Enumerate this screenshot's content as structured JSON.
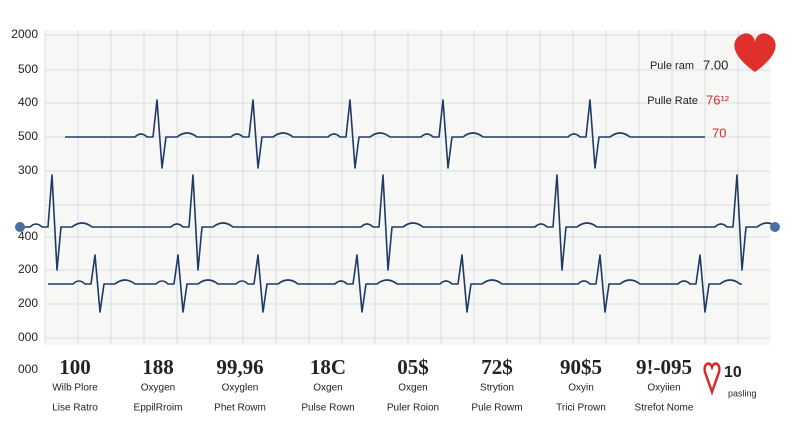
{
  "axis_labels": [
    "2000",
    "500",
    "400",
    "500",
    "300",
    "400",
    "200",
    "200",
    "000"
  ],
  "corner_label": "000",
  "readouts": [
    {
      "label": "Pule ram",
      "value": "7.00"
    },
    {
      "label": "Pulle Rate",
      "value": "76¹²"
    },
    {
      "value": "70"
    }
  ],
  "stats": [
    {
      "value": "100",
      "label": "Wilb Plore",
      "sublabel": "Lise Ratro"
    },
    {
      "value": "188",
      "label": "Oxygen",
      "sublabel": "EppilRroim"
    },
    {
      "value": "99,96",
      "label": "Oxyglen",
      "sublabel": "Phet Rowm"
    },
    {
      "value": "18C",
      "label": "Oxgen",
      "sublabel": "Pulse Rown"
    },
    {
      "value": "05$",
      "label": "Oxgen",
      "sublabel": "Puler Roion"
    },
    {
      "value": "72$",
      "label": "Strytion",
      "sublabel": "Pule Rowm"
    },
    {
      "value": "90$5",
      "label": "Oxyin",
      "sublabel": "Trici Prown"
    },
    {
      "value": "9!-095",
      "label": "Oxyiien",
      "sublabel": "Strefot Nome"
    }
  ],
  "legend": {
    "value": "10",
    "label": "pasling"
  }
}
